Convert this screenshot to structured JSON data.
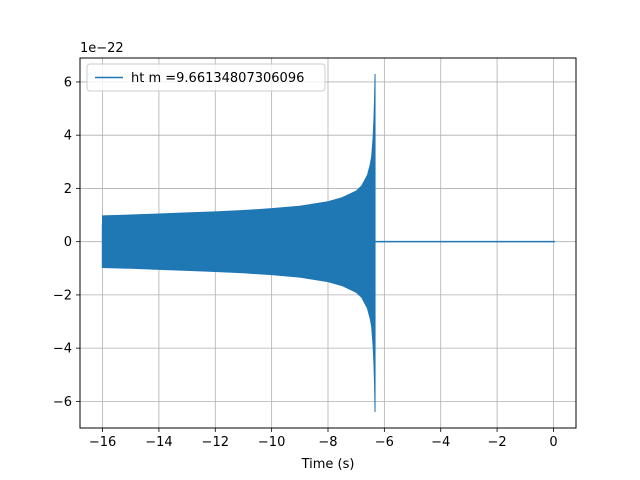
{
  "chart_data": {
    "type": "line",
    "title": "",
    "xlabel": "Time (s)",
    "ylabel": "",
    "y_offset_label": "1e−22",
    "xlim": [
      -16.8,
      0.8
    ],
    "ylim": [
      -7.0,
      6.9
    ],
    "x_ticks": [
      -16,
      -14,
      -12,
      -10,
      -8,
      -6,
      -4,
      -2,
      0
    ],
    "x_tick_labels": [
      "−16",
      "−14",
      "−12",
      "−10",
      "−8",
      "−6",
      "−4",
      "−2",
      "0"
    ],
    "y_ticks": [
      -6,
      -4,
      -2,
      0,
      2,
      4,
      6
    ],
    "y_tick_labels": [
      "−6",
      "−4",
      "−2",
      "0",
      "2",
      "4",
      "6"
    ],
    "grid": true,
    "legend_position": "top-left",
    "series": [
      {
        "name": "ht m =9.66134807306096",
        "color": "#1f77b4",
        "signal_start": -16.0,
        "merger_time": -6.33,
        "signal_end": 0.05,
        "envelope": {
          "t": [
            -16.0,
            -15.0,
            -14.0,
            -13.0,
            -12.0,
            -11.0,
            -10.0,
            -9.0,
            -8.0,
            -7.5,
            -7.0,
            -6.8,
            -6.6,
            -6.5,
            -6.45,
            -6.4,
            -6.37,
            -6.35,
            -6.33
          ],
          "amplitude": [
            0.97,
            1.0,
            1.04,
            1.08,
            1.12,
            1.17,
            1.24,
            1.33,
            1.5,
            1.65,
            1.9,
            2.1,
            2.5,
            2.9,
            3.2,
            3.9,
            4.6,
            5.3,
            6.3
          ]
        },
        "min_amplitude": -6.4,
        "first_sample_value": 0.65
      }
    ]
  }
}
